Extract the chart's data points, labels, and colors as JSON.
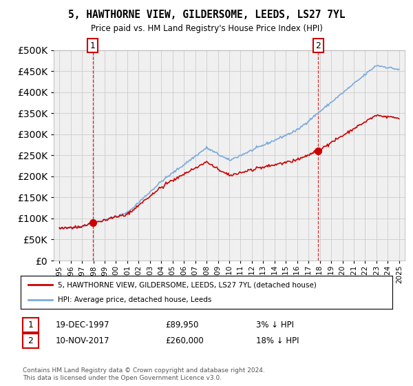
{
  "title": "5, HAWTHORNE VIEW, GILDERSOME, LEEDS, LS27 7YL",
  "subtitle": "Price paid vs. HM Land Registry's House Price Index (HPI)",
  "legend_entry1": "5, HAWTHORNE VIEW, GILDERSOME, LEEDS, LS27 7YL (detached house)",
  "legend_entry2": "HPI: Average price, detached house, Leeds",
  "annotation1_date": "19-DEC-1997",
  "annotation1_price": "£89,950",
  "annotation1_hpi": "3% ↓ HPI",
  "annotation2_date": "10-NOV-2017",
  "annotation2_price": "£260,000",
  "annotation2_hpi": "18% ↓ HPI",
  "footer": "Contains HM Land Registry data © Crown copyright and database right 2024.\nThis data is licensed under the Open Government Licence v3.0.",
  "price_paid_color": "#cc0000",
  "hpi_color": "#7aaadd",
  "marker_color": "#cc0000",
  "annotation_box_color": "#cc0000",
  "grid_color": "#cccccc",
  "background_color": "#ffffff",
  "plot_bg_color": "#f0f0f0",
  "ylim": [
    0,
    500000
  ],
  "yticks": [
    0,
    50000,
    100000,
    150000,
    200000,
    250000,
    300000,
    350000,
    400000,
    450000,
    500000
  ],
  "x_start_year": 1995,
  "x_end_year": 2025,
  "purchase1_year": 1997.96,
  "purchase1_value": 89950,
  "purchase2_year": 2017.86,
  "purchase2_value": 260000
}
